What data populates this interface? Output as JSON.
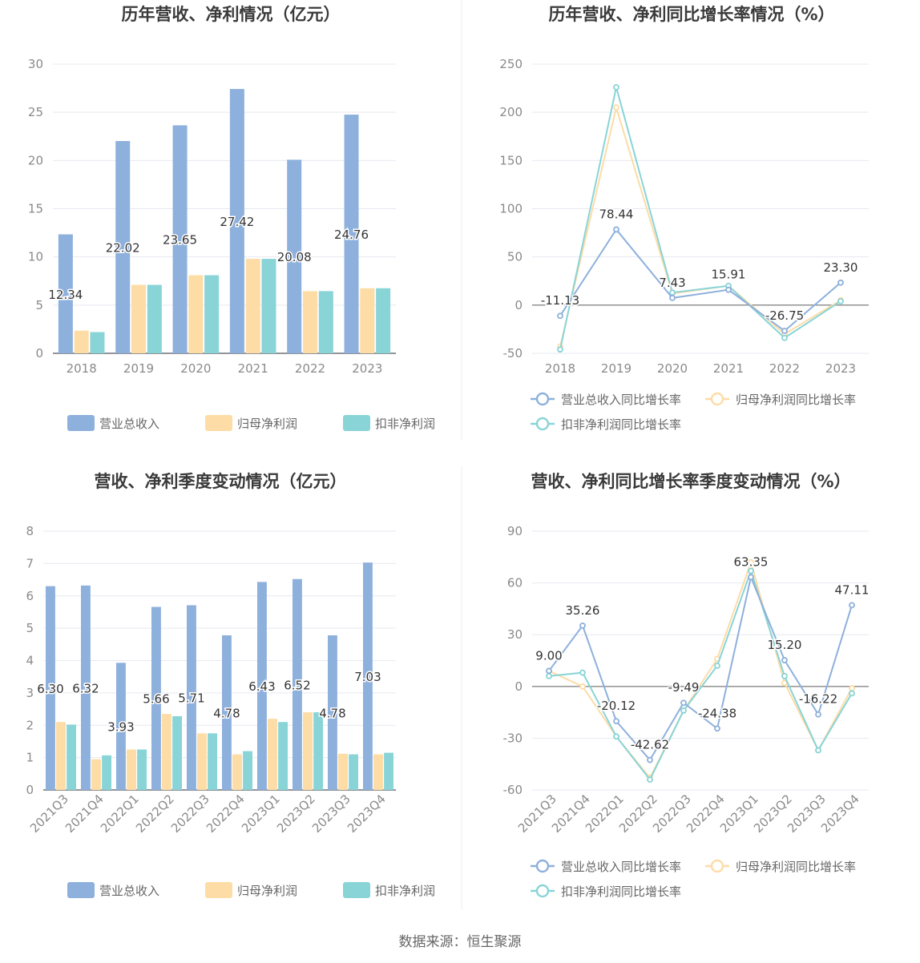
{
  "source_label": "数据来源：恒生聚源",
  "colors": {
    "revenue": "#8eb0dc",
    "parent_profit": "#fddca6",
    "deducted_profit": "#89d4d7",
    "grid": "#e6e9f0",
    "axis": "#6e7079",
    "zero": "#888888"
  },
  "chart_data": [
    {
      "type": "bar",
      "title": "历年营收、净利情况（亿元）",
      "categories": [
        "2018",
        "2019",
        "2020",
        "2021",
        "2022",
        "2023"
      ],
      "ylim": [
        0,
        30
      ],
      "yticks": [
        0,
        5,
        10,
        15,
        20,
        25,
        30
      ],
      "grid": true,
      "legend": "bottom",
      "series": [
        {
          "name": "营业总收入",
          "values": [
            12.34,
            22.02,
            23.65,
            27.42,
            20.08,
            24.76
          ],
          "labels": [
            "12.34",
            "22.02",
            "23.65",
            "27.42",
            "20.08",
            "24.76"
          ]
        },
        {
          "name": "归母净利润",
          "values": [
            2.35,
            7.1,
            8.1,
            9.8,
            6.45,
            6.75
          ]
        },
        {
          "name": "扣非净利润",
          "values": [
            2.2,
            7.1,
            8.1,
            9.8,
            6.45,
            6.75
          ]
        }
      ]
    },
    {
      "type": "line",
      "title": "历年营收、净利同比增长率情况（%）",
      "categories": [
        "2018",
        "2019",
        "2020",
        "2021",
        "2022",
        "2023"
      ],
      "ylim": [
        -50,
        250
      ],
      "yticks": [
        -50,
        0,
        50,
        100,
        150,
        200,
        250
      ],
      "grid": true,
      "legend": "bottom",
      "series": [
        {
          "name": "营业总收入同比增长率",
          "values": [
            -11.13,
            78.44,
            7.43,
            15.91,
            -26.75,
            23.3
          ],
          "labels": [
            "-11.13",
            "78.44",
            "7.43",
            "15.91",
            "-26.75",
            "23.30"
          ]
        },
        {
          "name": "归母净利润同比增长率",
          "values": [
            -43,
            205,
            12,
            20,
            -30,
            5
          ]
        },
        {
          "name": "扣非净利润同比增长率",
          "values": [
            -46,
            226,
            13,
            20,
            -34,
            4
          ]
        }
      ]
    },
    {
      "type": "bar",
      "title": "营收、净利季度变动情况（亿元）",
      "categories": [
        "2021Q3",
        "2021Q4",
        "2022Q1",
        "2022Q2",
        "2022Q3",
        "2022Q4",
        "2023Q1",
        "2023Q2",
        "2023Q3",
        "2023Q4"
      ],
      "ylim": [
        0,
        8
      ],
      "yticks": [
        0,
        1,
        2,
        3,
        4,
        5,
        6,
        7,
        8
      ],
      "grid": true,
      "legend": "bottom",
      "series": [
        {
          "name": "营业总收入",
          "values": [
            6.3,
            6.32,
            3.93,
            5.66,
            5.71,
            4.78,
            6.43,
            6.52,
            4.78,
            7.03
          ],
          "labels": [
            "6.30",
            "6.32",
            "3.93",
            "5.66",
            "5.71",
            "4.78",
            "6.43",
            "6.52",
            "4.78",
            "7.03"
          ]
        },
        {
          "name": "归母净利润",
          "values": [
            2.1,
            0.95,
            1.25,
            2.35,
            1.75,
            1.1,
            2.2,
            2.4,
            1.12,
            1.1
          ]
        },
        {
          "name": "扣非净利润",
          "values": [
            2.02,
            1.07,
            1.25,
            2.28,
            1.75,
            1.2,
            2.1,
            2.4,
            1.1,
            1.15
          ]
        }
      ]
    },
    {
      "type": "line",
      "title": "营收、净利同比增长率季度变动情况（%）",
      "categories": [
        "2021Q3",
        "2021Q4",
        "2022Q1",
        "2022Q2",
        "2022Q3",
        "2022Q4",
        "2023Q1",
        "2023Q2",
        "2023Q3",
        "2023Q4"
      ],
      "ylim": [
        -60,
        90
      ],
      "yticks": [
        -60,
        -30,
        0,
        30,
        60,
        90
      ],
      "grid": true,
      "legend": "bottom",
      "series": [
        {
          "name": "营业总收入同比增长率",
          "values": [
            9.0,
            35.26,
            -20.12,
            -42.62,
            -9.49,
            -24.38,
            63.35,
            15.2,
            -16.22,
            47.11
          ],
          "labels": [
            "9.00",
            "35.26",
            "-20.12",
            "-42.62",
            "-9.49",
            "-24.38",
            "63.35",
            "15.20",
            "-16.22",
            "47.11"
          ]
        },
        {
          "name": "归母净利润同比增长率",
          "values": [
            9,
            0,
            -29,
            -53,
            -14,
            16,
            72,
            2,
            -37,
            -1
          ]
        },
        {
          "name": "扣非净利润同比增长率",
          "values": [
            6,
            8,
            -29,
            -54,
            -14,
            12,
            67,
            6,
            -37,
            -4
          ]
        }
      ]
    }
  ]
}
